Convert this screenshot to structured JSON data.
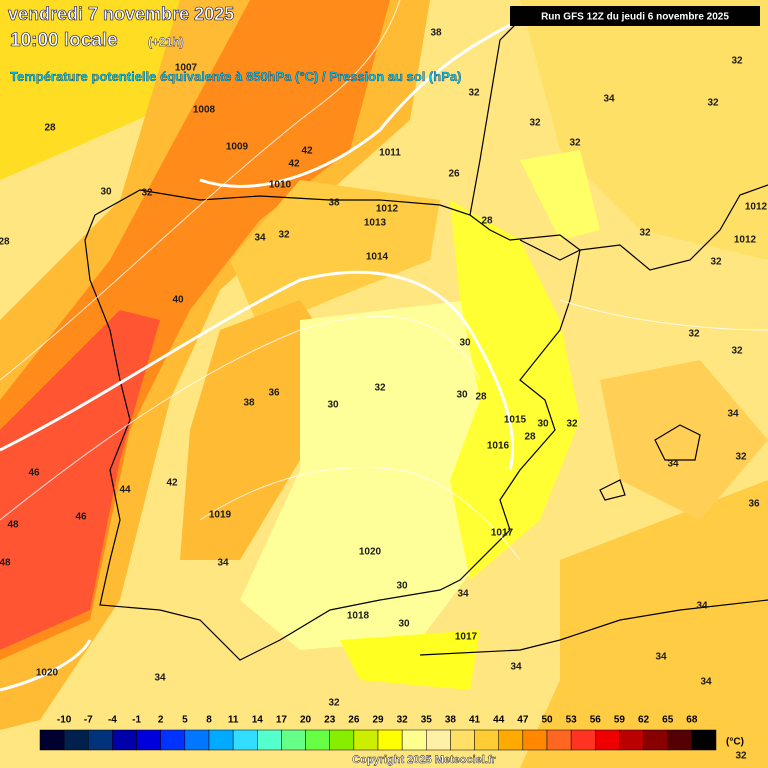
{
  "header": {
    "date": "vendredi 7 novembre 2025",
    "time": "10:00 locale",
    "lead": "(+21h)",
    "subtitle": "Température potentielle équivalente à 850hPa (°C) / Pression au sol (hPa)",
    "run": "Run GFS 12Z du jeudi 6 novembre 2025"
  },
  "map": {
    "labels": [
      "28",
      "1008",
      "1007",
      "1009",
      "42",
      "42",
      "1011",
      "1010",
      "30",
      "32",
      "38",
      "1012",
      "1013",
      "34",
      "32",
      "28",
      "26",
      "32",
      "32",
      "32",
      "34",
      "32",
      "32",
      "38",
      "1012",
      "1012",
      "32",
      "32",
      "32",
      "1014",
      "40",
      "30",
      "32",
      "32",
      "32",
      "36",
      "38",
      "30",
      "30",
      "28",
      "1015",
      "30",
      "28",
      "1016",
      "34",
      "34",
      "32",
      "46",
      "44",
      "42",
      "36",
      "48",
      "46",
      "1019",
      "1017",
      "1020",
      "48",
      "34",
      "30",
      "34",
      "34",
      "1018",
      "30",
      "1017",
      "34",
      "34",
      "1020",
      "34",
      "34",
      "32",
      "32",
      "28"
    ]
  },
  "colorbar": {
    "ticks": [
      -10,
      -7,
      -4,
      -1,
      2,
      5,
      8,
      11,
      14,
      17,
      20,
      23,
      26,
      29,
      32,
      35,
      38,
      41,
      44,
      47,
      50,
      53,
      56,
      59,
      62,
      65,
      68
    ],
    "colors": [
      "#000030",
      "#00204d",
      "#00337a",
      "#0000aa",
      "#0000dd",
      "#0033ff",
      "#0077ff",
      "#00aaff",
      "#33ddff",
      "#55ffcc",
      "#66ff88",
      "#66ff44",
      "#88ee00",
      "#ccee00",
      "#ffff00",
      "#ffff90",
      "#fff0a8",
      "#ffe066",
      "#ffcc33",
      "#ffaa00",
      "#ff8800",
      "#ff6622",
      "#ff3322",
      "#ee0000",
      "#bb0000",
      "#880000",
      "#550000",
      "#000000"
    ],
    "unit": "(°C)"
  },
  "footer": {
    "copyright": "Copyright 2025 Meteociel.fr"
  }
}
